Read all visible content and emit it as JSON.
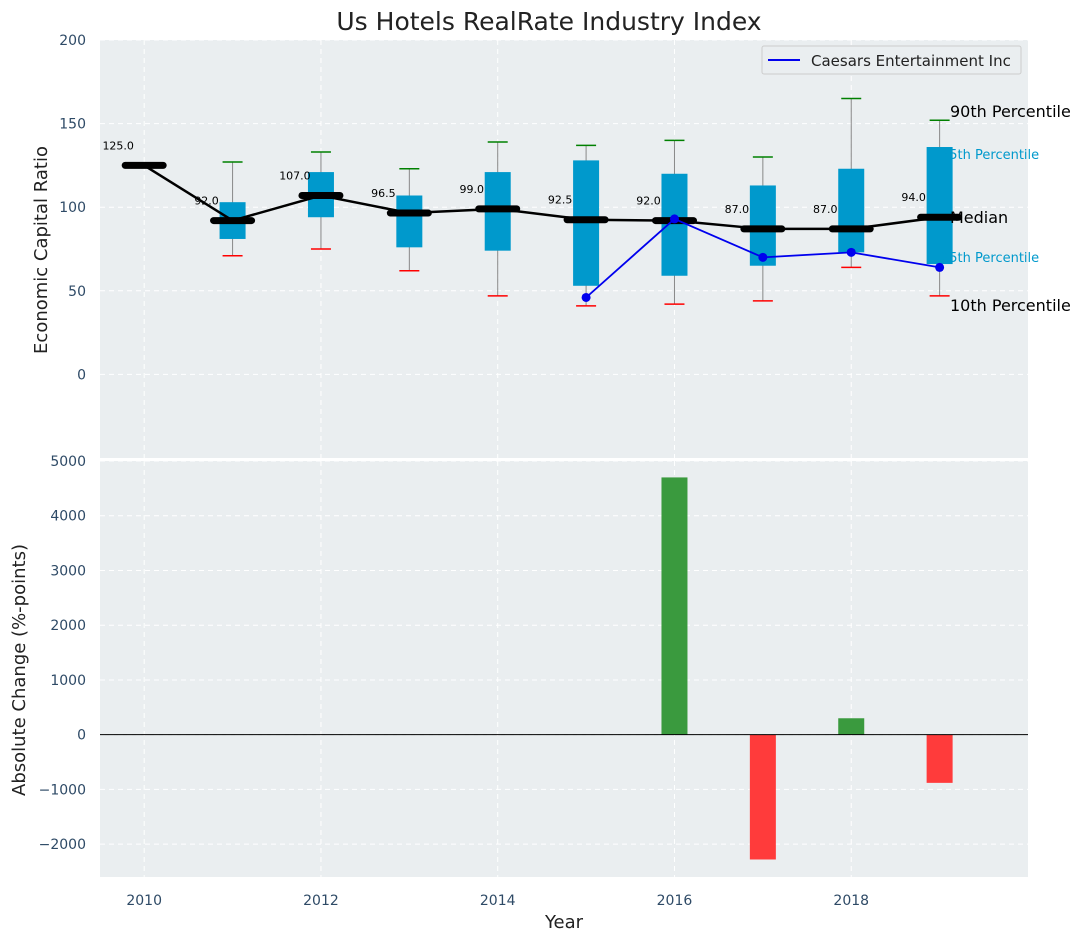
{
  "title": "Us Hotels RealRate Industry Index",
  "colors": {
    "panel_bg": "#eaeef0",
    "box": "#0099cc",
    "median": "#000000",
    "company": "#0000ee",
    "p90_cap": "#008000",
    "p10_cap": "#ff0000",
    "bar_positive": "#3a9a3e",
    "bar_negative": "#ff3b3b",
    "percentile_small_text": "#0099cc"
  },
  "chart_data": [
    {
      "type": "box",
      "ylabel": "Economic Capital Ratio",
      "ylim": [
        -50,
        200
      ],
      "yticks": [
        0,
        50,
        100,
        150,
        200
      ],
      "xlim": [
        2009.5,
        2020
      ],
      "xticks": [
        2010,
        2012,
        2014,
        2016,
        2018
      ],
      "grid": true,
      "legend": {
        "position": "top-right",
        "entries": [
          "Caesars Entertainment Inc"
        ]
      },
      "years": [
        2010,
        2011,
        2012,
        2013,
        2014,
        2015,
        2016,
        2017,
        2018,
        2019
      ],
      "median": [
        125.0,
        92.0,
        107.0,
        96.5,
        99.0,
        92.5,
        92.0,
        87.0,
        87.0,
        94.0
      ],
      "median_labels": [
        "125.0",
        "92.0",
        "107.0",
        "96.5",
        "99.0",
        "92.5",
        "92.0",
        "87.0",
        "87.0",
        "94.0"
      ],
      "p25": [
        null,
        81,
        94,
        76,
        74,
        53,
        59,
        65,
        73,
        66
      ],
      "p75": [
        null,
        103,
        121,
        107,
        121,
        128,
        120,
        113,
        123,
        136
      ],
      "p10": [
        null,
        71,
        75,
        62,
        47,
        41,
        42,
        44,
        64,
        47
      ],
      "p90": [
        null,
        127,
        133,
        123,
        139,
        137,
        140,
        130,
        165,
        152
      ],
      "series": [
        {
          "name": "Caesars Entertainment Inc",
          "x": [
            2015,
            2016,
            2017,
            2018,
            2019
          ],
          "values": [
            46,
            93,
            70,
            73,
            64
          ]
        }
      ],
      "percentile_labels": {
        "p90": "90th Percentile",
        "p75": "75th Percentile",
        "median": "Median",
        "p25": "25th Percentile",
        "p10": "10th Percentile"
      }
    },
    {
      "type": "bar",
      "ylabel": "Absolute Change (%-points)",
      "xlabel": "Year",
      "ylim": [
        -2600,
        5000
      ],
      "yticks": [
        -2000,
        -1000,
        0,
        1000,
        2000,
        3000,
        4000,
        5000
      ],
      "ytick_labels": [
        "−2000",
        "−1000",
        "0",
        "1000",
        "2000",
        "3000",
        "4000",
        "5000"
      ],
      "xlim": [
        2009.5,
        2020
      ],
      "xticks": [
        2010,
        2012,
        2014,
        2016,
        2018
      ],
      "grid": true,
      "x": [
        2016,
        2017,
        2018,
        2019
      ],
      "values": [
        4700,
        -2280,
        300,
        -880
      ]
    }
  ]
}
